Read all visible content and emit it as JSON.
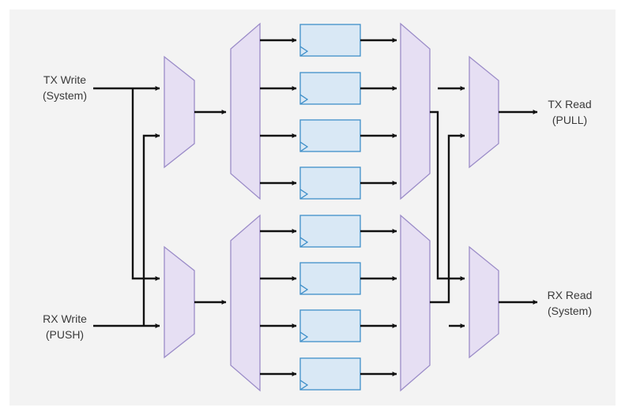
{
  "labels": {
    "tx_write_line1": "TX Write",
    "tx_write_line2": "(System)",
    "rx_write_line1": "RX Write",
    "rx_write_line2": "(PUSH)",
    "tx_read_line1": "TX Read",
    "tx_read_line2": "(PULL)",
    "rx_read_line1": "RX Read",
    "rx_read_line2": "(System)"
  },
  "colors": {
    "background": "#f3f3f3",
    "mux_fill": "#e6dff3",
    "mux_stroke": "#9b8cc8",
    "register_fill": "#d9e8f5",
    "register_stroke": "#3f8fc9",
    "wire": "#111111"
  },
  "components": {
    "input_muxes": 2,
    "demuxes": 2,
    "registers": 8,
    "output_muxes": 2
  }
}
